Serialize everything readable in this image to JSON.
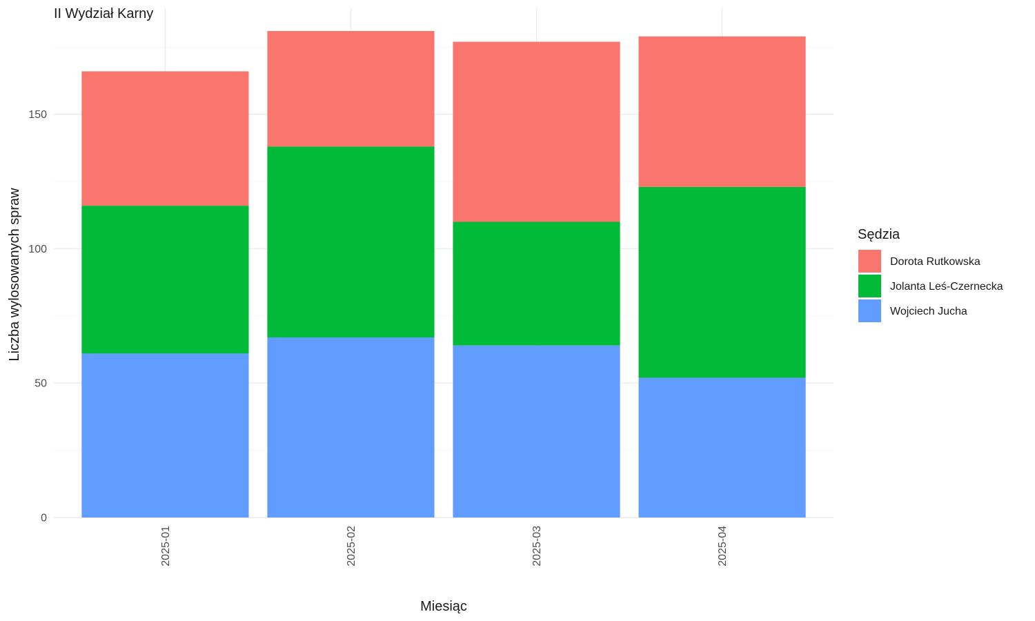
{
  "chart_data": {
    "type": "bar",
    "stacked": true,
    "title": "II Wydział Karny",
    "xlabel": "Miesiąc",
    "ylabel": "Liczba wylosowanych spraw",
    "categories": [
      "2025-01",
      "2025-02",
      "2025-03",
      "2025-04"
    ],
    "series": [
      {
        "name": "Wojciech Jucha",
        "values": [
          61,
          67,
          64,
          52
        ],
        "color": "#619CFF"
      },
      {
        "name": "Jolanta Leś-Czernecka",
        "values": [
          55,
          71,
          46,
          71
        ],
        "color": "#00BA38"
      },
      {
        "name": "Dorota Rutkowska",
        "values": [
          50,
          43,
          67,
          56
        ],
        "color": "#F8766D"
      }
    ],
    "ylim": [
      0,
      186
    ],
    "yticks": [
      0,
      50,
      100,
      150
    ],
    "grid": true,
    "legend": {
      "title": "Sędzia",
      "position": "right",
      "order": [
        "Dorota Rutkowska",
        "Jolanta Leś-Czernecka",
        "Wojciech Jucha"
      ]
    }
  }
}
